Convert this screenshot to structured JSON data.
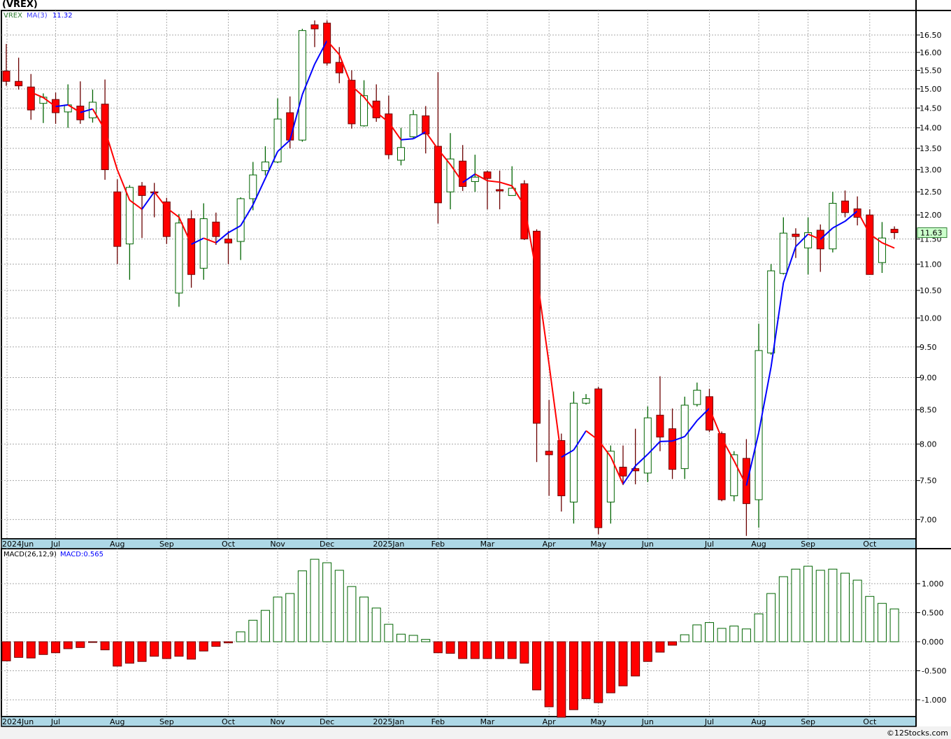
{
  "title": "(VREX)",
  "footer": "©12Stocks.com",
  "colors": {
    "down_fill": "#ff0000",
    "down_stroke": "#6b0000",
    "up_stroke": "#006400",
    "ma_up": "#0000ff",
    "ma_down": "#ff0000",
    "date_strip": "#add8e6",
    "last_price_bg": "#ccffcc"
  },
  "chart_data": [
    {
      "type": "candlestick",
      "legend": {
        "symbol": "VREX",
        "ma_label": "MA(3)",
        "ma_value": "11.32"
      },
      "last_price": "11.63",
      "scale": "log",
      "ylim": [
        6.75,
        17.0
      ],
      "y_ticks": [
        "7.00",
        "7.50",
        "8.00",
        "8.50",
        "9.00",
        "9.50",
        "10.00",
        "10.50",
        "11.00",
        "11.50",
        "12.00",
        "12.50",
        "13.00",
        "13.50",
        "14.00",
        "14.50",
        "15.00",
        "15.50",
        "16.00",
        "16.50"
      ],
      "months": [
        {
          "label": "2024Jun",
          "index": 0
        },
        {
          "label": "Jul",
          "index": 4
        },
        {
          "label": "Aug",
          "index": 9
        },
        {
          "label": "Sep",
          "index": 13
        },
        {
          "label": "Oct",
          "index": 18
        },
        {
          "label": "Nov",
          "index": 22
        },
        {
          "label": "Dec",
          "index": 26
        },
        {
          "label": "2025Jan",
          "index": 31
        },
        {
          "label": "Feb",
          "index": 35
        },
        {
          "label": "Mar",
          "index": 39
        },
        {
          "label": "Apr",
          "index": 44
        },
        {
          "label": "May",
          "index": 48
        },
        {
          "label": "Jun",
          "index": 52
        },
        {
          "label": "Jul",
          "index": 57
        },
        {
          "label": "Aug",
          "index": 61
        },
        {
          "label": "Sep",
          "index": 65
        },
        {
          "label": "Oct",
          "index": 70
        }
      ],
      "ohlc": [
        [
          15.48,
          16.24,
          15.08,
          15.2
        ],
        [
          15.2,
          15.85,
          14.98,
          15.08
        ],
        [
          15.05,
          15.4,
          14.2,
          14.45
        ],
        [
          14.62,
          14.88,
          14.12,
          14.78
        ],
        [
          14.72,
          14.9,
          14.1,
          14.38
        ],
        [
          14.4,
          15.12,
          14.0,
          14.58
        ],
        [
          14.55,
          15.2,
          14.1,
          14.2
        ],
        [
          14.25,
          14.98,
          14.13,
          14.65
        ],
        [
          14.6,
          15.25,
          12.77,
          13.0
        ],
        [
          12.5,
          12.78,
          11.0,
          11.35
        ],
        [
          11.4,
          12.65,
          10.7,
          12.6
        ],
        [
          12.63,
          12.72,
          11.52,
          12.42
        ],
        [
          12.5,
          12.7,
          11.95,
          12.48
        ],
        [
          12.28,
          12.37,
          11.4,
          11.55
        ],
        [
          10.45,
          12.02,
          10.2,
          11.83
        ],
        [
          11.92,
          12.1,
          10.55,
          10.8
        ],
        [
          10.92,
          12.25,
          10.7,
          11.92
        ],
        [
          11.85,
          12.05,
          11.38,
          11.55
        ],
        [
          11.5,
          11.67,
          11.0,
          11.42
        ],
        [
          11.45,
          12.38,
          11.08,
          12.35
        ],
        [
          12.35,
          13.18,
          12.1,
          12.88
        ],
        [
          12.98,
          13.55,
          12.87,
          13.18
        ],
        [
          13.18,
          14.75,
          13.15,
          14.22
        ],
        [
          14.38,
          14.8,
          13.5,
          13.7
        ],
        [
          13.7,
          16.68,
          13.66,
          16.63
        ],
        [
          16.8,
          16.93,
          16.15,
          16.68
        ],
        [
          16.85,
          16.93,
          15.63,
          15.7
        ],
        [
          15.72,
          16.15,
          15.15,
          15.43
        ],
        [
          15.23,
          15.5,
          13.98,
          14.1
        ],
        [
          14.05,
          15.23,
          14.03,
          14.82
        ],
        [
          14.68,
          15.12,
          14.15,
          14.25
        ],
        [
          14.35,
          14.82,
          13.25,
          13.35
        ],
        [
          13.22,
          14.0,
          13.1,
          13.52
        ],
        [
          13.78,
          14.45,
          13.75,
          14.33
        ],
        [
          14.3,
          14.55,
          13.38,
          13.85
        ],
        [
          13.55,
          15.45,
          11.82,
          12.26
        ],
        [
          12.5,
          13.87,
          12.12,
          13.25
        ],
        [
          13.2,
          13.58,
          12.52,
          12.62
        ],
        [
          12.73,
          13.35,
          12.5,
          12.83
        ],
        [
          12.95,
          12.98,
          12.12,
          12.8
        ],
        [
          12.55,
          12.98,
          12.12,
          12.52
        ],
        [
          12.42,
          13.08,
          12.42,
          12.58
        ],
        [
          12.68,
          12.76,
          11.48,
          11.5
        ],
        [
          11.66,
          11.7,
          7.75,
          8.3
        ],
        [
          7.9,
          8.65,
          7.3,
          7.85
        ],
        [
          8.05,
          8.15,
          7.1,
          7.3
        ],
        [
          7.22,
          8.78,
          6.95,
          8.6
        ],
        [
          8.6,
          8.74,
          8.58,
          8.67
        ],
        [
          8.82,
          8.85,
          6.82,
          6.9
        ],
        [
          7.22,
          7.98,
          6.95,
          7.9
        ],
        [
          7.68,
          7.98,
          7.44,
          7.56
        ],
        [
          7.66,
          8.22,
          7.45,
          7.63
        ],
        [
          7.6,
          8.55,
          7.48,
          8.38
        ],
        [
          8.42,
          9.02,
          7.9,
          8.1
        ],
        [
          8.22,
          8.52,
          7.52,
          7.65
        ],
        [
          7.66,
          8.7,
          7.52,
          8.57
        ],
        [
          8.58,
          8.92,
          8.55,
          8.8
        ],
        [
          8.7,
          8.82,
          8.17,
          8.2
        ],
        [
          8.15,
          8.18,
          7.23,
          7.25
        ],
        [
          7.3,
          7.9,
          7.23,
          7.85
        ],
        [
          7.8,
          8.07,
          6.8,
          7.2
        ],
        [
          7.25,
          9.9,
          6.9,
          9.44
        ],
        [
          9.4,
          11.0,
          9.37,
          10.87
        ],
        [
          10.82,
          11.95,
          10.8,
          11.62
        ],
        [
          11.6,
          11.72,
          11.12,
          11.55
        ],
        [
          11.32,
          11.95,
          10.8,
          11.63
        ],
        [
          11.68,
          11.8,
          10.85,
          11.3
        ],
        [
          11.3,
          12.5,
          11.23,
          12.25
        ],
        [
          12.3,
          12.53,
          11.95,
          12.05
        ],
        [
          12.13,
          12.4,
          11.78,
          11.95
        ],
        [
          12.0,
          12.12,
          10.8,
          10.8
        ],
        [
          11.03,
          11.85,
          10.83,
          11.52
        ],
        [
          11.7,
          11.76,
          11.5,
          11.63
        ]
      ]
    },
    {
      "type": "bar",
      "legend": {
        "label": "MACD(26,12,9)",
        "value_label": "MACD:0.565"
      },
      "ylim": [
        -1.3,
        1.45
      ],
      "y_ticks": [
        "1.000",
        "0.500",
        "0.000",
        "-0.500",
        "-1.000"
      ],
      "values": [
        -0.33,
        -0.27,
        -0.28,
        -0.22,
        -0.19,
        -0.12,
        -0.1,
        -0.01,
        -0.14,
        -0.42,
        -0.37,
        -0.34,
        -0.25,
        -0.29,
        -0.25,
        -0.3,
        -0.16,
        -0.08,
        -0.02,
        0.17,
        0.37,
        0.54,
        0.77,
        0.83,
        1.22,
        1.42,
        1.36,
        1.23,
        0.95,
        0.77,
        0.58,
        0.3,
        0.13,
        0.11,
        0.04,
        -0.19,
        -0.2,
        -0.29,
        -0.29,
        -0.29,
        -0.29,
        -0.29,
        -0.37,
        -0.83,
        -1.12,
        -1.3,
        -1.17,
        -0.98,
        -1.05,
        -0.88,
        -0.76,
        -0.59,
        -0.34,
        -0.18,
        -0.06,
        0.12,
        0.29,
        0.33,
        0.23,
        0.27,
        0.22,
        0.48,
        0.83,
        1.12,
        1.25,
        1.3,
        1.23,
        1.25,
        1.18,
        1.06,
        0.78,
        0.66,
        0.565
      ]
    }
  ]
}
